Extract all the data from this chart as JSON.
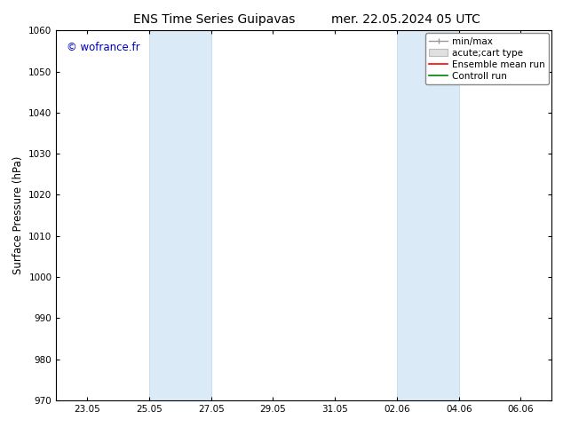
{
  "title_left": "ENS Time Series Guipavas",
  "title_right": "mer. 22.05.2024 05 UTC",
  "ylabel": "Surface Pressure (hPa)",
  "ylim": [
    970,
    1060
  ],
  "yticks": [
    970,
    980,
    990,
    1000,
    1010,
    1020,
    1030,
    1040,
    1050,
    1060
  ],
  "xtick_labels": [
    "23.05",
    "25.05",
    "27.05",
    "29.05",
    "31.05",
    "02.06",
    "04.06",
    "06.06"
  ],
  "xtick_positions": [
    0,
    2,
    4,
    6,
    8,
    10,
    12,
    14
  ],
  "xlim": [
    -1,
    15
  ],
  "shaded_bands": [
    {
      "x_start": 2,
      "x_end": 4
    },
    {
      "x_start": 10,
      "x_end": 12
    }
  ],
  "band_color": "#daeaf7",
  "band_edge_color": "#b8d4ec",
  "watermark": "© wofrance.fr",
  "watermark_color": "#0000bb",
  "background_color": "#ffffff",
  "title_fontsize": 10,
  "tick_fontsize": 7.5,
  "ylabel_fontsize": 8.5,
  "watermark_fontsize": 8.5,
  "legend_fontsize": 7.5
}
